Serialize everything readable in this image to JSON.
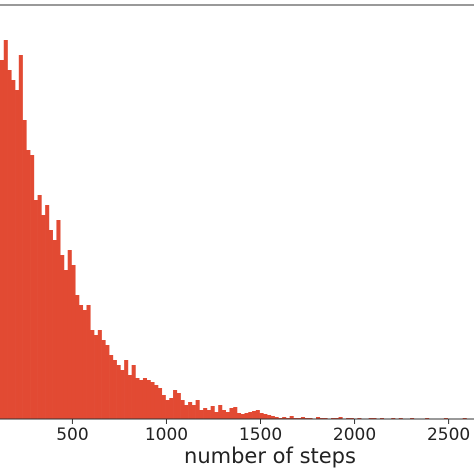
{
  "chart_data": {
    "type": "histogram",
    "xlabel": "number of steps",
    "color": "#e24a33",
    "bins": [
      115,
      135,
      155,
      175,
      195,
      215,
      235,
      255,
      275,
      295,
      315,
      335,
      355,
      375,
      395,
      415,
      435,
      455,
      475,
      495,
      515,
      535,
      555,
      575,
      595,
      615,
      635,
      655,
      675,
      695,
      715,
      735,
      755,
      775,
      795,
      815,
      835,
      855,
      875,
      895,
      915,
      935,
      955,
      975,
      995,
      1015,
      1035,
      1055,
      1075,
      1095,
      1115,
      1135,
      1155,
      1175,
      1195,
      1215,
      1235,
      1255,
      1275,
      1295,
      1315,
      1335,
      1355,
      1375,
      1395,
      1415,
      1435,
      1455,
      1475,
      1495,
      1515,
      1535,
      1555,
      1575,
      1595,
      1615,
      1635,
      1655,
      1675,
      1695,
      1715,
      1735,
      1755,
      1775,
      1795,
      1815,
      1835,
      1855,
      1875,
      1895,
      1915,
      1935,
      1955,
      1975,
      1995,
      2015,
      2035,
      2055,
      2075,
      2095,
      2115,
      2135,
      2155,
      2175,
      2195,
      2215,
      2235,
      2255,
      2275,
      2295,
      2315,
      2335,
      2355,
      2375,
      2395,
      2415,
      2435,
      2455,
      2475,
      2495,
      2515,
      2535,
      2555,
      2575,
      2595,
      2615,
      2635
    ],
    "values": [
      359,
      379,
      349,
      339,
      329,
      364,
      299,
      269,
      264,
      219,
      224,
      204,
      214,
      189,
      179,
      199,
      164,
      149,
      169,
      154,
      124,
      114,
      109,
      114,
      89,
      84,
      89,
      79,
      74,
      64,
      59,
      54,
      49,
      59,
      44,
      54,
      41,
      39,
      41,
      39,
      37,
      34,
      31,
      24,
      19,
      21,
      29,
      26,
      19,
      14,
      17,
      14,
      19,
      9,
      11,
      9,
      13,
      7,
      14,
      9,
      7,
      11,
      12,
      6,
      5,
      6,
      7,
      8,
      9,
      6,
      5,
      4,
      3,
      2,
      1,
      2,
      1,
      3,
      1,
      1,
      2,
      1,
      1,
      0,
      2,
      1,
      1,
      0,
      1,
      1,
      2,
      0,
      1,
      1,
      0,
      1,
      0,
      0,
      1,
      1,
      0,
      1,
      0,
      0,
      1,
      0,
      1,
      0,
      0,
      1,
      0,
      0,
      0,
      1,
      0,
      0,
      0,
      0,
      1,
      0,
      0,
      0,
      0,
      1,
      0,
      0
    ],
    "xlim": [
      115,
      2635
    ],
    "ylim": [
      0,
      414
    ],
    "xticks": [
      500,
      1000,
      1500,
      2000,
      2500
    ]
  }
}
